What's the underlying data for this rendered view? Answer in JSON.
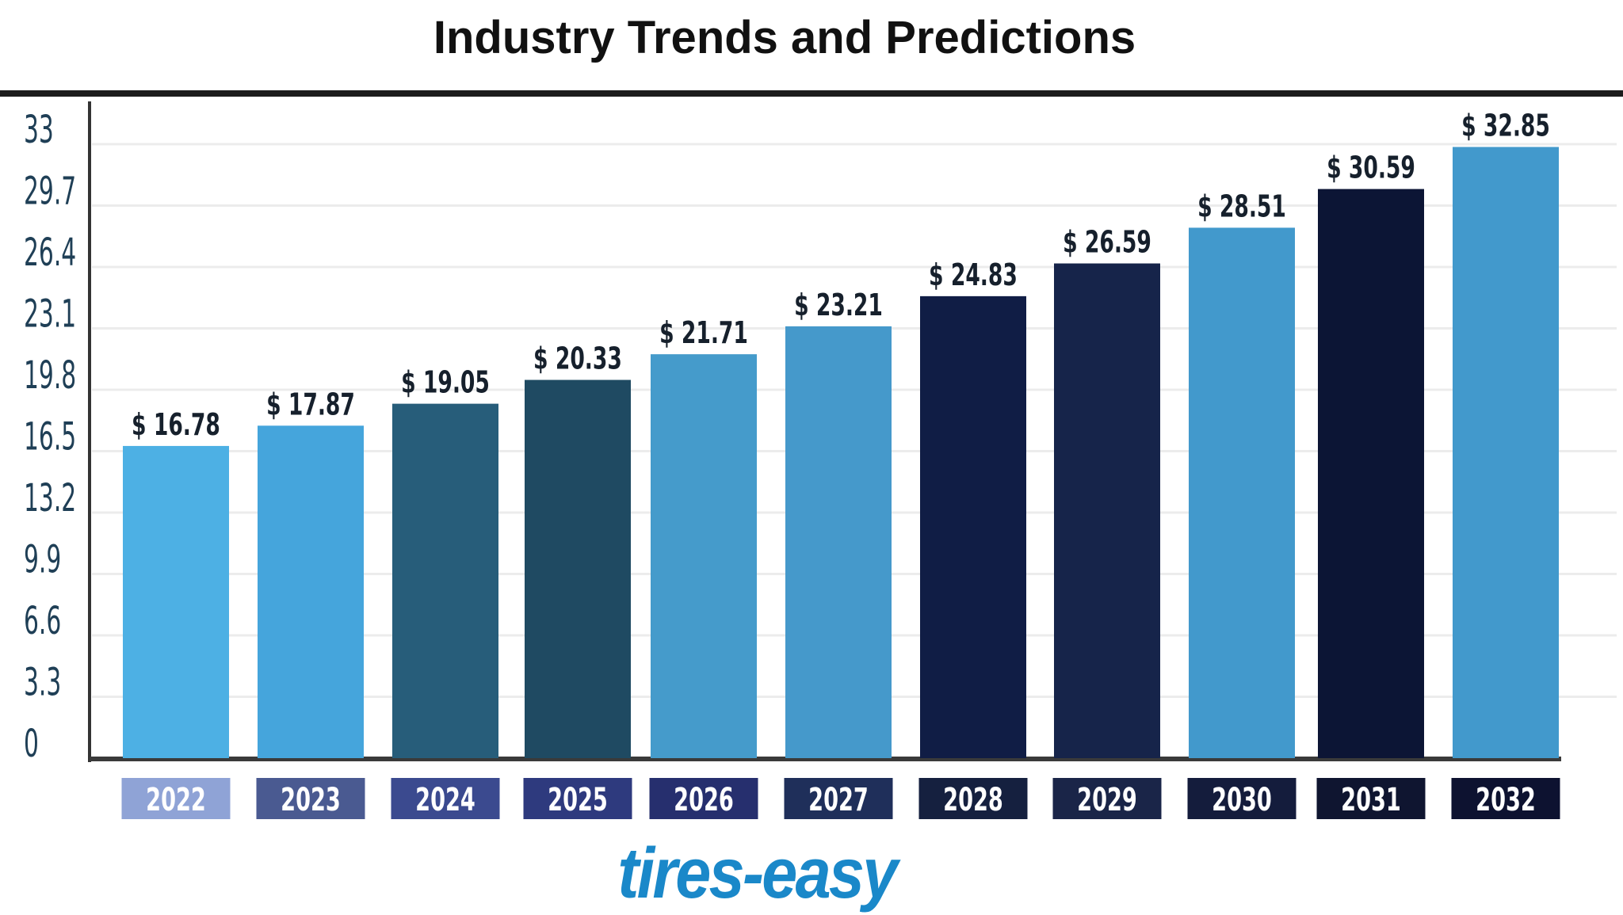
{
  "chart_data": {
    "type": "bar",
    "title": "Industry Trends and Predictions",
    "categories": [
      "2022",
      "2023",
      "2024",
      "2025",
      "2026",
      "2027",
      "2028",
      "2029",
      "2030",
      "2031",
      "2032"
    ],
    "values": [
      16.78,
      17.87,
      19.05,
      20.33,
      21.71,
      23.21,
      24.83,
      26.59,
      28.51,
      30.59,
      32.85
    ],
    "value_labels": [
      "$ 16.78",
      "$ 17.87",
      "$ 19.05",
      "$ 20.33",
      "$ 21.71",
      "$ 23.21",
      "$ 24.83",
      "$ 26.59",
      "$ 28.51",
      "$ 30.59",
      "$ 32.85"
    ],
    "yticks": [
      "0",
      "3.3",
      "6.6",
      "9.9",
      "13.2",
      "16.5",
      "19.8",
      "23.1",
      "26.4",
      "29.7",
      "33"
    ],
    "ylim": [
      0,
      33
    ],
    "grid": true,
    "xlabel": "",
    "ylabel": "",
    "bar_colors": [
      "#4db0e4",
      "#45a5dc",
      "#275d7a",
      "#1f4a62",
      "#459bcb",
      "#4599cb",
      "#101d45",
      "#16244a",
      "#4299cc",
      "#0c1535",
      "#4299cc"
    ],
    "year_box_colors": [
      "#8fa3d6",
      "#4a5a91",
      "#3b4a8f",
      "#2e3a7e",
      "#262f6e",
      "#1f2f5a",
      "#15203f",
      "#1a2548",
      "#141c3c",
      "#0f1530",
      "#0d1230"
    ]
  },
  "logo": "tires-easy"
}
